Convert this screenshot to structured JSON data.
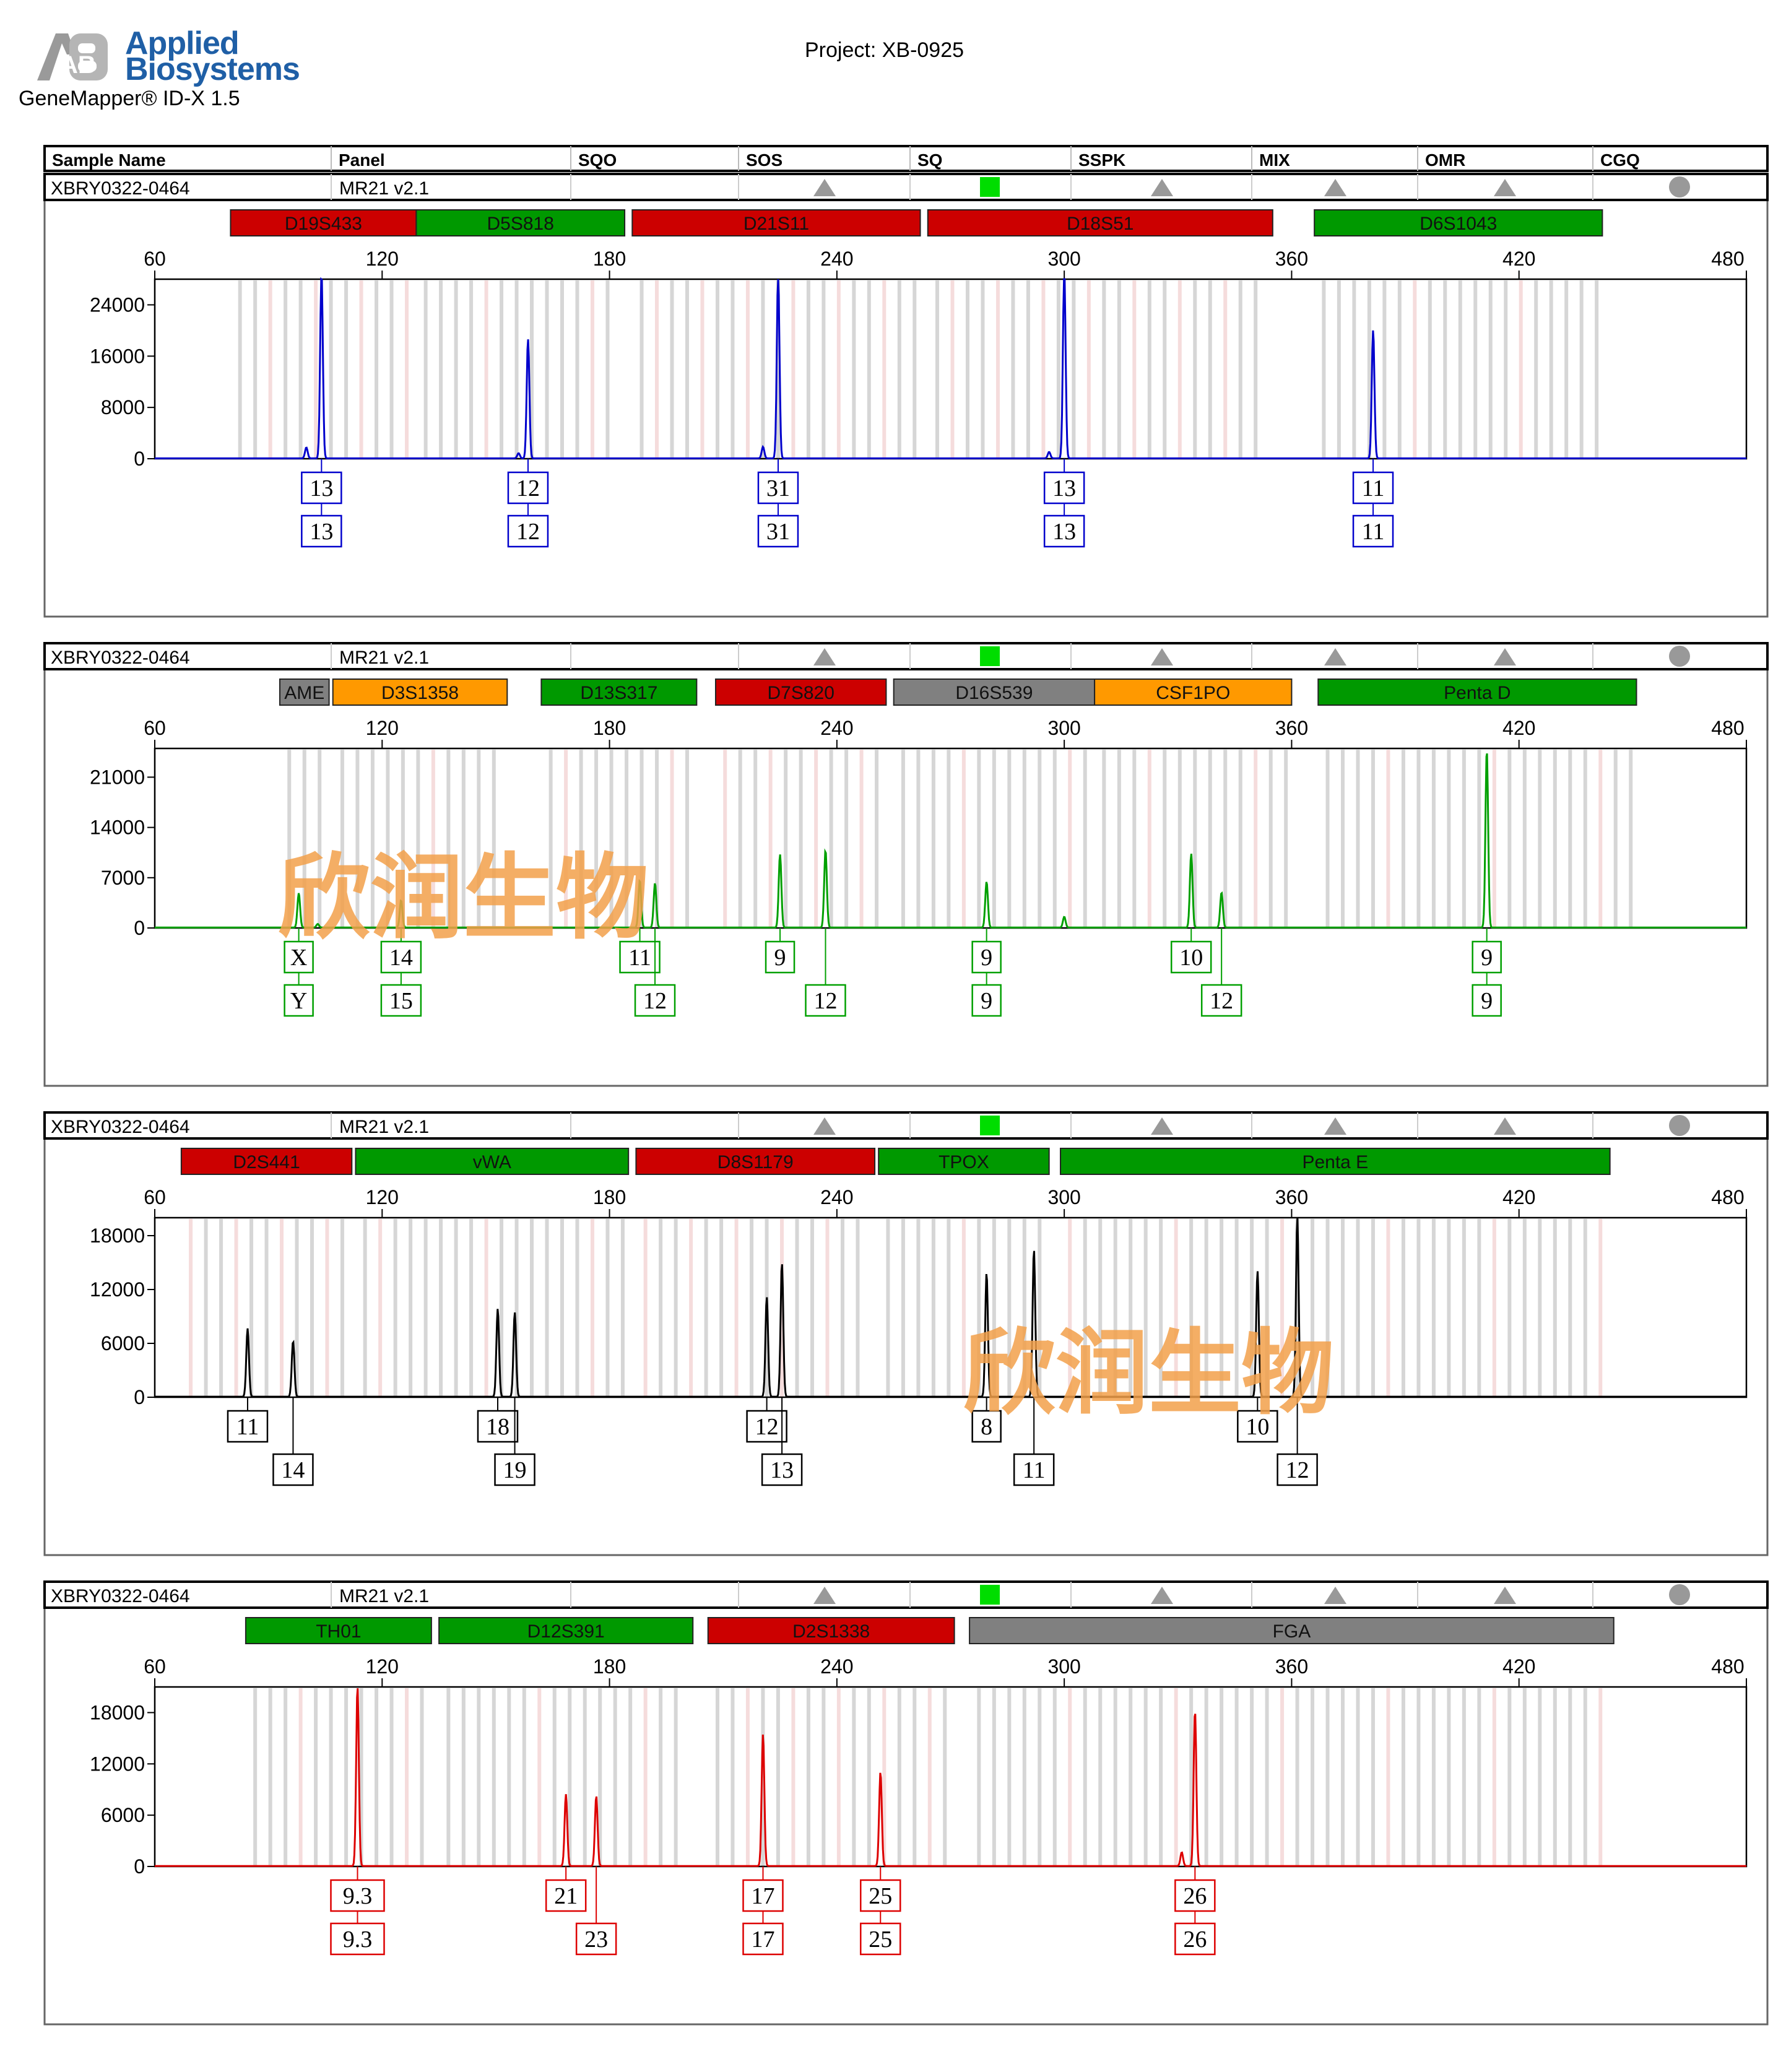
{
  "header": {
    "brand_line1": "Applied",
    "brand_line2": "Biosystems",
    "brand_mark": "AB",
    "software": "GeneMapper® ID-X  1.5",
    "project": "Project: XB-0925"
  },
  "colors": {
    "blue": "#0000cc",
    "green": "#00a000",
    "black": "#000000",
    "red": "#dd0000",
    "locus_red": "#cc0000",
    "locus_green": "#009900",
    "locus_gray": "#808080",
    "locus_orange": "#ff9900",
    "status_green": "#00dd00",
    "status_gray": "#999999",
    "watermark": "#f2a04a"
  },
  "table_header": [
    "Sample Name",
    "Panel",
    "SQO",
    "SOS",
    "SQ",
    "SSPK",
    "MIX",
    "OMR",
    "CGQ"
  ],
  "watermark": "欣润生物",
  "chart_data": [
    {
      "type": "line",
      "dye": "blue",
      "sample_name": "XBRY0322-0464",
      "panel": "MR21  v2.1",
      "status_icons": [
        "triangle-icon",
        "triangle-icon",
        "green-square-icon",
        "triangle-icon",
        "triangle-icon",
        "triangle-icon",
        "circle-icon"
      ],
      "xlim": [
        60,
        480
      ],
      "x_ticks": [
        60,
        120,
        180,
        240,
        300,
        360,
        420,
        480
      ],
      "ylim": [
        0,
        28000
      ],
      "y_ticks": [
        0,
        8000,
        16000,
        24000
      ],
      "loci": [
        {
          "name": "D19S433",
          "color": "red",
          "start": 80,
          "end": 129
        },
        {
          "name": "D5S818",
          "color": "green",
          "start": 129,
          "end": 184
        },
        {
          "name": "D21S11",
          "color": "red",
          "start": 186,
          "end": 262
        },
        {
          "name": "D18S51",
          "color": "red",
          "start": 264,
          "end": 355
        },
        {
          "name": "D6S1043",
          "color": "green",
          "start": 366,
          "end": 442
        }
      ],
      "peaks": [
        {
          "x": 104,
          "y": 29000,
          "labels": [
            "13",
            "13"
          ]
        },
        {
          "x": 100,
          "y": 1700,
          "labels": []
        },
        {
          "x": 158.5,
          "y": 18600,
          "labels": [
            "12",
            "12"
          ]
        },
        {
          "x": 156,
          "y": 800,
          "labels": []
        },
        {
          "x": 224.5,
          "y": 28800,
          "labels": [
            "31",
            "31"
          ]
        },
        {
          "x": 220.5,
          "y": 1800,
          "labels": []
        },
        {
          "x": 300,
          "y": 29500,
          "labels": [
            "13",
            "13"
          ]
        },
        {
          "x": 296,
          "y": 1000,
          "labels": []
        },
        {
          "x": 381.5,
          "y": 20000,
          "labels": [
            "11",
            "11"
          ]
        }
      ]
    },
    {
      "type": "line",
      "dye": "green",
      "sample_name": "XBRY0322-0464",
      "panel": "MR21  v2.1",
      "status_icons": [
        "triangle-icon",
        "triangle-icon",
        "green-square-icon",
        "triangle-icon",
        "triangle-icon",
        "triangle-icon",
        "circle-icon"
      ],
      "xlim": [
        60,
        480
      ],
      "x_ticks": [
        60,
        120,
        180,
        240,
        300,
        360,
        420,
        480
      ],
      "ylim": [
        0,
        25000
      ],
      "y_ticks": [
        0,
        7000,
        14000,
        21000
      ],
      "loci": [
        {
          "name": "AME",
          "color": "gray",
          "start": 93,
          "end": 106
        },
        {
          "name": "D3S1358",
          "color": "orange",
          "start": 107,
          "end": 153
        },
        {
          "name": "D13S317",
          "color": "green",
          "start": 162,
          "end": 203
        },
        {
          "name": "D7S820",
          "color": "red",
          "start": 208,
          "end": 253
        },
        {
          "name": "D16S539",
          "color": "gray",
          "start": 255,
          "end": 308
        },
        {
          "name": "CSF1PO",
          "color": "orange",
          "start": 308,
          "end": 360
        },
        {
          "name": "Penta D",
          "color": "green",
          "start": 367,
          "end": 451
        }
      ],
      "peaks": [
        {
          "x": 98,
          "y": 4800,
          "labels": [
            "X",
            "Y"
          ]
        },
        {
          "x": 103,
          "y": 500,
          "labels": []
        },
        {
          "x": 125,
          "y": 3800,
          "labels": [
            "14",
            "15"
          ]
        },
        {
          "x": 188,
          "y": 6600,
          "labels": [
            "11",
            "12"
          ]
        },
        {
          "x": 192,
          "y": 6200,
          "labels": []
        },
        {
          "x": 225,
          "y": 10200,
          "labels": [
            "9",
            "12"
          ]
        },
        {
          "x": 237,
          "y": 10800,
          "labels": []
        },
        {
          "x": 279.5,
          "y": 6400,
          "labels": [
            "9",
            "9"
          ]
        },
        {
          "x": 300,
          "y": 1500,
          "labels": []
        },
        {
          "x": 333.5,
          "y": 10300,
          "labels": [
            "10",
            "12"
          ]
        },
        {
          "x": 341.5,
          "y": 4900,
          "labels": []
        },
        {
          "x": 411.5,
          "y": 24800,
          "labels": [
            "9",
            "9"
          ]
        }
      ]
    },
    {
      "type": "line",
      "dye": "black",
      "sample_name": "XBRY0322-0464",
      "panel": "MR21  v2.1",
      "status_icons": [
        "triangle-icon",
        "triangle-icon",
        "green-square-icon",
        "triangle-icon",
        "triangle-icon",
        "triangle-icon",
        "circle-icon"
      ],
      "xlim": [
        60,
        480
      ],
      "x_ticks": [
        60,
        120,
        180,
        240,
        300,
        360,
        420,
        480
      ],
      "ylim": [
        0,
        20000
      ],
      "y_ticks": [
        0,
        6000,
        12000,
        18000
      ],
      "loci": [
        {
          "name": "D2S441",
          "color": "red",
          "start": 67,
          "end": 112
        },
        {
          "name": "vWA",
          "color": "green",
          "start": 113,
          "end": 185
        },
        {
          "name": "D8S1179",
          "color": "red",
          "start": 187,
          "end": 250
        },
        {
          "name": "TPOX",
          "color": "green",
          "start": 251,
          "end": 296
        },
        {
          "name": "Penta E",
          "color": "green",
          "start": 299,
          "end": 444
        }
      ],
      "peaks": [
        {
          "x": 84.5,
          "y": 7600,
          "labels": [
            "11",
            "14"
          ]
        },
        {
          "x": 96.5,
          "y": 6200,
          "labels": []
        },
        {
          "x": 150.5,
          "y": 9800,
          "labels": [
            "18",
            "19"
          ]
        },
        {
          "x": 155,
          "y": 9400,
          "labels": []
        },
        {
          "x": 221.5,
          "y": 11100,
          "labels": [
            "12",
            "13"
          ]
        },
        {
          "x": 225.5,
          "y": 14900,
          "labels": []
        },
        {
          "x": 279.5,
          "y": 13800,
          "labels": [
            "8",
            "11"
          ]
        },
        {
          "x": 292,
          "y": 16400,
          "labels": []
        },
        {
          "x": 351,
          "y": 14000,
          "labels": [
            "10",
            "12"
          ]
        },
        {
          "x": 361.5,
          "y": 20000,
          "labels": []
        }
      ]
    },
    {
      "type": "line",
      "dye": "red",
      "sample_name": "XBRY0322-0464",
      "panel": "MR21  v2.1",
      "status_icons": [
        "triangle-icon",
        "triangle-icon",
        "green-square-icon",
        "triangle-icon",
        "triangle-icon",
        "triangle-icon",
        "circle-icon"
      ],
      "xlim": [
        60,
        480
      ],
      "x_ticks": [
        60,
        120,
        180,
        240,
        300,
        360,
        420,
        480
      ],
      "ylim": [
        0,
        21000
      ],
      "y_ticks": [
        0,
        6000,
        12000,
        18000
      ],
      "loci": [
        {
          "name": "TH01",
          "color": "green",
          "start": 84,
          "end": 133
        },
        {
          "name": "D12S391",
          "color": "green",
          "start": 135,
          "end": 202
        },
        {
          "name": "D2S1338",
          "color": "red",
          "start": 206,
          "end": 271
        },
        {
          "name": "FGA",
          "color": "gray",
          "start": 275,
          "end": 445
        }
      ],
      "peaks": [
        {
          "x": 113.5,
          "y": 21000,
          "labels": [
            "9.3",
            "9.3"
          ]
        },
        {
          "x": 168.5,
          "y": 8400,
          "labels": [
            "21",
            "23"
          ]
        },
        {
          "x": 176.5,
          "y": 8200,
          "labels": []
        },
        {
          "x": 220.5,
          "y": 15400,
          "labels": [
            "17",
            "17"
          ]
        },
        {
          "x": 251.5,
          "y": 11000,
          "labels": [
            "25",
            "25"
          ]
        },
        {
          "x": 334.5,
          "y": 18200,
          "labels": [
            "26",
            "26"
          ]
        },
        {
          "x": 331,
          "y": 1600,
          "labels": []
        }
      ]
    }
  ]
}
